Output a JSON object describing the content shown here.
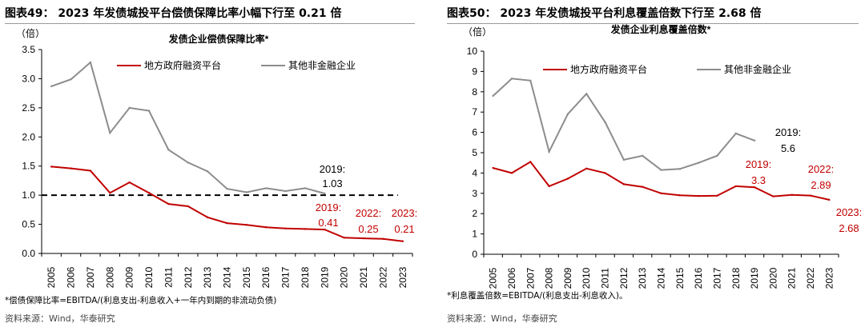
{
  "chart_data": [
    {
      "type": "line",
      "figure_title": "图表49：  2023 年发债城投平台偿债保障比率小幅下行至 0.21 倍",
      "title": "发债企业偿债保障比率*",
      "unit_label": "（倍）",
      "categories": [
        "2005",
        "2006",
        "2007",
        "2008",
        "2009",
        "2010",
        "2011",
        "2012",
        "2013",
        "2014",
        "2015",
        "2016",
        "2017",
        "2018",
        "2019",
        "2020",
        "2021",
        "2022",
        "2023"
      ],
      "ylim": [
        0,
        3.5
      ],
      "yticks": [
        "0.0",
        "0.5",
        "1.0",
        "1.5",
        "2.0",
        "2.5",
        "3.0",
        "3.5"
      ],
      "reference_line": 1.0,
      "series": [
        {
          "name": "地方政府融资平台",
          "color": "#c00000",
          "values": [
            1.49,
            1.46,
            1.42,
            1.04,
            1.22,
            1.04,
            0.85,
            0.81,
            0.62,
            0.52,
            0.49,
            0.45,
            0.43,
            0.42,
            0.41,
            0.27,
            0.26,
            0.25,
            0.21
          ]
        },
        {
          "name": "其他非金融企业",
          "color": "#8c8c8c",
          "values": [
            2.87,
            2.99,
            3.28,
            2.07,
            2.5,
            2.45,
            1.78,
            1.56,
            1.41,
            1.11,
            1.05,
            1.12,
            1.07,
            1.12,
            1.03,
            null,
            null,
            null,
            null
          ]
        }
      ],
      "annotations": [
        {
          "color": "#000000",
          "cat": "2019",
          "lines": [
            "2019:",
            "1.03"
          ]
        },
        {
          "color": "#c00000",
          "cat": "2019",
          "lines": [
            "2019:",
            "0.41"
          ]
        },
        {
          "color": "#c00000",
          "cat": "2022",
          "lines": [
            "2022:",
            "0.25"
          ]
        },
        {
          "color": "#c00000",
          "cat": "2023",
          "lines": [
            "2023:",
            "0.21"
          ]
        }
      ],
      "note": "*偿债保障比率=EBITDA/(利息支出-利息收入+一年内到期的非流动负债)",
      "source": "资料来源：Wind，华泰研究"
    },
    {
      "type": "line",
      "figure_title": "图表50：  2023 年发债城投平台利息覆盖倍数下行至 2.68 倍",
      "title": "发债企业利息覆盖倍数*",
      "unit_label": "（倍）",
      "categories": [
        "2005",
        "2006",
        "2007",
        "2008",
        "2009",
        "2010",
        "2011",
        "2012",
        "2013",
        "2014",
        "2015",
        "2016",
        "2017",
        "2018",
        "2019",
        "2020",
        "2021",
        "2022",
        "2023"
      ],
      "ylim": [
        0,
        10
      ],
      "yticks": [
        "0",
        "1",
        "2",
        "3",
        "4",
        "5",
        "6",
        "7",
        "8",
        "9",
        "10"
      ],
      "series": [
        {
          "name": "地方政府融资平台",
          "color": "#c00000",
          "values": [
            4.25,
            4.0,
            4.55,
            3.35,
            3.72,
            4.22,
            4.0,
            3.45,
            3.32,
            3.0,
            2.9,
            2.87,
            2.88,
            3.35,
            3.3,
            2.85,
            2.92,
            2.89,
            2.68
          ]
        },
        {
          "name": "其他非金融企业",
          "color": "#8c8c8c",
          "values": [
            7.8,
            8.65,
            8.55,
            5.05,
            6.9,
            7.9,
            6.5,
            4.65,
            4.85,
            4.15,
            4.2,
            4.5,
            4.85,
            5.95,
            5.6,
            null,
            null,
            null,
            null
          ]
        }
      ],
      "annotations": [
        {
          "color": "#000000",
          "cat": "2019",
          "lines": [
            "2019:",
            "5.6"
          ]
        },
        {
          "color": "#c00000",
          "cat": "2019",
          "lines": [
            "2019:",
            "3.3"
          ]
        },
        {
          "color": "#c00000",
          "cat": "2022",
          "lines": [
            "2022:",
            "2.89"
          ]
        },
        {
          "color": "#c00000",
          "cat": "2023",
          "lines": [
            "2023:",
            "2.68"
          ]
        }
      ],
      "note": "*利息覆盖倍数=EBITDA/(利息支出-利息收入)。",
      "source": "资料来源：Wind，华泰研究"
    }
  ]
}
